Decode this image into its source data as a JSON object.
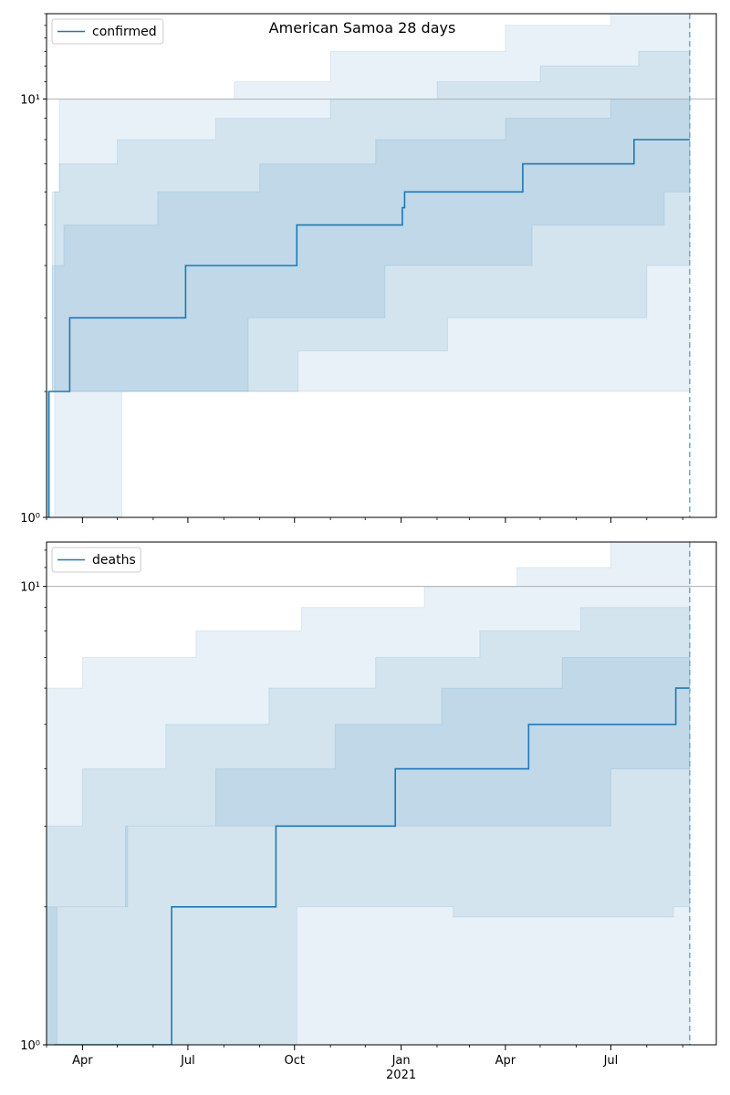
{
  "title": "American Samoa 28 days",
  "colors": {
    "line": "#1f77b4",
    "band": "#1f77b4",
    "vline": "#6baed6",
    "grid": "#b0b0b0"
  },
  "x_ticks": [
    {
      "label": "Apr",
      "date": "2020-04-01"
    },
    {
      "label": "Jul",
      "date": "2020-07-01"
    },
    {
      "label": "Oct",
      "date": "2020-10-01"
    },
    {
      "label": "Jan",
      "date": "2021-01-01"
    },
    {
      "label": "Apr",
      "date": "2021-04-01"
    },
    {
      "label": "Jul",
      "date": "2021-07-01"
    }
  ],
  "x_year_label": "2021",
  "chart_data": [
    {
      "type": "line",
      "legend": "confirmed",
      "legend_loc": "upper left",
      "yscale": "log",
      "ylim": [
        1,
        16
      ],
      "xlim": [
        "2020-03-01",
        "2021-09-30"
      ],
      "y_ticks": [
        {
          "value": 1,
          "label": "10⁰"
        },
        {
          "value": 10,
          "label": "10¹"
        }
      ],
      "hline": 10,
      "forecast_date": "2021-09-07",
      "series": [
        {
          "name": "confirmed",
          "points": [
            [
              "2020-03-02",
              1
            ],
            [
              "2020-03-03",
              2
            ],
            [
              "2020-03-21",
              3
            ],
            [
              "2020-06-29",
              4
            ],
            [
              "2020-10-03",
              5
            ],
            [
              "2021-01-02",
              5.5
            ],
            [
              "2021-01-04",
              6
            ],
            [
              "2021-04-16",
              7
            ],
            [
              "2021-07-21",
              8
            ],
            [
              "2021-09-07",
              8
            ]
          ]
        }
      ],
      "bands": [
        {
          "lower": [
            [
              "2020-03-01",
              1
            ],
            [
              "2020-05-03",
              1
            ],
            [
              "2020-05-05",
              2
            ],
            [
              "2021-03-07",
              2
            ],
            [
              "2021-09-07",
              2
            ]
          ],
          "upper": [
            [
              "2020-03-01",
              1
            ],
            [
              "2020-03-08",
              6
            ],
            [
              "2020-03-12",
              10
            ],
            [
              "2020-08-10",
              11
            ],
            [
              "2020-11-01",
              13
            ],
            [
              "2021-04-01",
              15
            ],
            [
              "2021-07-01",
              16
            ],
            [
              "2021-09-07",
              16
            ]
          ]
        },
        {
          "lower": [
            [
              "2020-03-01",
              1
            ],
            [
              "2020-03-04",
              2
            ],
            [
              "2020-05-05",
              2
            ],
            [
              "2020-05-07",
              2
            ],
            [
              "2020-10-02",
              2
            ],
            [
              "2020-10-04",
              2.5
            ],
            [
              "2021-02-10",
              3
            ],
            [
              "2021-08-01",
              4
            ],
            [
              "2021-09-07",
              4
            ]
          ],
          "upper": [
            [
              "2020-03-01",
              2
            ],
            [
              "2020-03-06",
              6
            ],
            [
              "2020-03-12",
              7
            ],
            [
              "2020-05-01",
              8
            ],
            [
              "2020-07-25",
              9
            ],
            [
              "2020-11-01",
              10
            ],
            [
              "2021-02-01",
              11
            ],
            [
              "2021-05-01",
              12
            ],
            [
              "2021-07-25",
              13
            ],
            [
              "2021-09-07",
              13
            ]
          ]
        },
        {
          "lower": [
            [
              "2020-03-01",
              1
            ],
            [
              "2020-03-03",
              2
            ],
            [
              "2020-05-06",
              2
            ],
            [
              "2020-08-17",
              2
            ],
            [
              "2020-08-22",
              3
            ],
            [
              "2020-12-15",
              3
            ],
            [
              "2020-12-18",
              4
            ],
            [
              "2021-04-24",
              5
            ],
            [
              "2021-08-16",
              6
            ],
            [
              "2021-09-07",
              6
            ]
          ],
          "upper": [
            [
              "2020-03-01",
              2
            ],
            [
              "2020-03-06",
              4
            ],
            [
              "2020-03-16",
              5
            ],
            [
              "2020-06-05",
              6
            ],
            [
              "2020-09-01",
              7
            ],
            [
              "2020-12-10",
              8
            ],
            [
              "2021-04-01",
              9
            ],
            [
              "2021-07-01",
              10
            ],
            [
              "2021-09-07",
              10
            ]
          ]
        }
      ]
    },
    {
      "type": "line",
      "legend": "deaths",
      "legend_loc": "upper left",
      "yscale": "log",
      "ylim": [
        1,
        12.5
      ],
      "xlim": [
        "2020-03-01",
        "2021-09-30"
      ],
      "y_ticks": [
        {
          "value": 1,
          "label": "10⁰"
        },
        {
          "value": 10,
          "label": "10¹"
        }
      ],
      "hline": 10,
      "forecast_date": "2021-09-07",
      "series": [
        {
          "name": "deaths",
          "points": [
            [
              "2020-03-08",
              1
            ],
            [
              "2020-06-16",
              1
            ],
            [
              "2020-06-17",
              2
            ],
            [
              "2020-09-15",
              3
            ],
            [
              "2020-12-27",
              4
            ],
            [
              "2021-04-21",
              5
            ],
            [
              "2021-08-26",
              6
            ],
            [
              "2021-09-07",
              6
            ]
          ]
        }
      ],
      "bands": [
        {
          "lower": [
            [
              "2020-03-01",
              1
            ],
            [
              "2021-09-07",
              1
            ]
          ],
          "upper": [
            [
              "2020-03-01",
              6
            ],
            [
              "2020-04-01",
              7
            ],
            [
              "2020-07-08",
              8
            ],
            [
              "2020-10-07",
              9
            ],
            [
              "2021-01-21",
              10
            ],
            [
              "2021-04-11",
              11
            ],
            [
              "2021-07-01",
              12.5
            ],
            [
              "2021-09-07",
              12.5
            ]
          ]
        },
        {
          "lower": [
            [
              "2020-03-01",
              1
            ],
            [
              "2020-10-01",
              1
            ],
            [
              "2020-10-03",
              2
            ],
            [
              "2021-02-13",
              2
            ],
            [
              "2021-02-15",
              1.9
            ],
            [
              "2021-08-24",
              2
            ],
            [
              "2021-09-07",
              2
            ]
          ],
          "upper": [
            [
              "2020-03-01",
              3
            ],
            [
              "2020-04-01",
              4
            ],
            [
              "2020-06-12",
              5
            ],
            [
              "2020-09-09",
              6
            ],
            [
              "2020-12-10",
              7
            ],
            [
              "2021-03-10",
              8
            ],
            [
              "2021-06-05",
              9
            ],
            [
              "2021-09-07",
              9
            ]
          ]
        },
        {
          "lower": [
            [
              "2020-03-01",
              1
            ],
            [
              "2020-03-10",
              2
            ],
            [
              "2020-05-08",
              2
            ],
            [
              "2020-05-10",
              3
            ],
            [
              "2020-09-28",
              3
            ],
            [
              "2020-09-30",
              3
            ],
            [
              "2021-02-12",
              3
            ],
            [
              "2021-02-14",
              3
            ],
            [
              "2021-07-01",
              4
            ],
            [
              "2021-09-07",
              4
            ]
          ],
          "upper": [
            [
              "2020-03-01",
              2
            ],
            [
              "2020-05-08",
              3
            ],
            [
              "2020-07-25",
              4
            ],
            [
              "2020-11-05",
              5
            ],
            [
              "2021-02-05",
              6
            ],
            [
              "2021-05-20",
              7
            ],
            [
              "2021-09-07",
              7
            ]
          ]
        }
      ]
    }
  ]
}
